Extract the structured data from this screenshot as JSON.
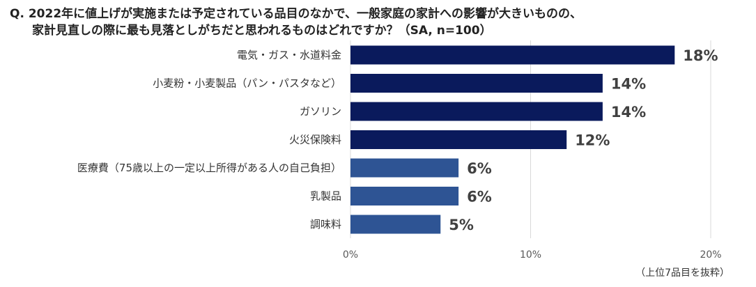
{
  "question": {
    "line1": "Q. 2022年に値上げが実施または予定されている品目のなかで、一般家庭の家計への影響が大きいものの、",
    "line2": "家計見直しの際に最も見落としがちだと思われるものはどれですか？（SA, n=100）"
  },
  "footnote": "（上位7品目を抜粋）",
  "colors": {
    "primary_bar": "#0a1a5c",
    "secondary_bar": "#2e5494",
    "grid": "#d9d9d9",
    "label_text": "#333333",
    "value_text": "#404040"
  },
  "chart_data": {
    "type": "bar",
    "orientation": "horizontal",
    "categories": [
      "電気・ガス・水道料金",
      "小麦粉・小麦製品（パン・パスタなど）",
      "ガソリン",
      "火災保険料",
      "医療費（75歳以上の一定以上所得がある人の自己負担）",
      "乳製品",
      "調味料"
    ],
    "values": [
      18,
      14,
      14,
      12,
      6,
      6,
      5
    ],
    "value_labels": [
      "18%",
      "14%",
      "14%",
      "12%",
      "6%",
      "6%",
      "5%"
    ],
    "bar_color_group": [
      "primary",
      "primary",
      "primary",
      "primary",
      "secondary",
      "secondary",
      "secondary"
    ],
    "xlim": [
      0,
      20
    ],
    "xticks": [
      0,
      10,
      20
    ],
    "xtick_labels": [
      "0%",
      "10%",
      "20%"
    ],
    "grid": true,
    "unit": "%"
  }
}
